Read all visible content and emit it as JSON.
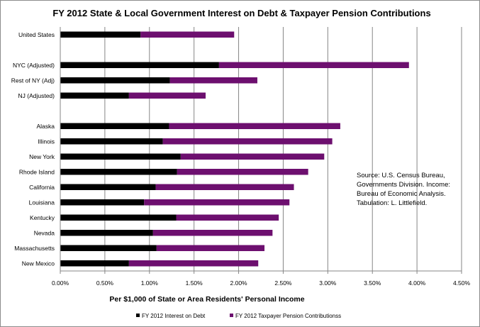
{
  "chart_data": {
    "type": "bar",
    "orientation": "horizontal",
    "stacked": true,
    "title": "FY 2012 State & Local Government Interest on Debt & Taxpayer Pension Contributions",
    "xlabel": "Per $1,000 of State or Area Residents' Personal Income",
    "ylabel": "",
    "xlim": [
      0,
      0.045
    ],
    "x_ticks": [
      0,
      0.005,
      0.01,
      0.015,
      0.02,
      0.025,
      0.03,
      0.035,
      0.04,
      0.045
    ],
    "x_tick_labels": [
      "0.00%",
      "0.50%",
      "1.00%",
      "1.50%",
      "2.00%",
      "2.50%",
      "3.00%",
      "3.50%",
      "4.00%",
      "4.50%"
    ],
    "grid": "vertical",
    "categories": [
      "United States",
      "",
      "NYC (Adjusted)",
      "Rest of NY (Adj)",
      "NJ (Adjusted)",
      "",
      "Alaska",
      "Illinois",
      "New York",
      "Rhode Island",
      "California",
      "Louisiana",
      "Kentucky",
      "Nevada",
      "Massachusetts",
      "New Mexico"
    ],
    "series": [
      {
        "name": "FY 2012 Interest on Debt",
        "color": "#000000",
        "values": [
          0.009,
          null,
          0.0178,
          0.0123,
          0.0077,
          null,
          0.0122,
          0.0115,
          0.0135,
          0.0131,
          0.0107,
          0.0094,
          0.013,
          0.0104,
          0.0108,
          0.0077
        ]
      },
      {
        "name": "FY 2012 Taxpayer Pension Contributionss",
        "color": "#6d0f6f",
        "values": [
          0.0105,
          null,
          0.0213,
          0.0098,
          0.0086,
          null,
          0.0192,
          0.019,
          0.0161,
          0.0147,
          0.0155,
          0.0163,
          0.0115,
          0.0134,
          0.0121,
          0.0145
        ]
      }
    ],
    "legend_position": "bottom",
    "annotation": [
      "Source:  U.S. Census Bureau,",
      "Governments Division.  Income:",
      "Bureau of Economic Analysis.",
      "Tabulation:  L. Littlefield."
    ]
  }
}
